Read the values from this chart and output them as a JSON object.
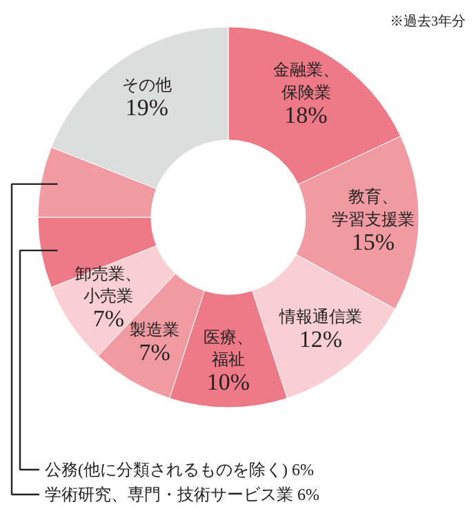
{
  "chart_data": {
    "type": "donut",
    "categories": [
      "金融業、保険業",
      "教育、学習支援業",
      "情報通信業",
      "医療、福祉",
      "製造業",
      "卸売業、小売業",
      "公務(他に分類されるものを除く)",
      "学術研究、専門・技術サービス業",
      "その他"
    ],
    "values": [
      18,
      15,
      12,
      10,
      7,
      7,
      6,
      6,
      19
    ],
    "value_labels": [
      "18%",
      "15%",
      "12%",
      "10%",
      "7%",
      "7%",
      "6%",
      "6%",
      "19%"
    ],
    "colors": [
      "#ee7a87",
      "#f19aa1",
      "#f9cfd3",
      "#ee7a87",
      "#f19aa1",
      "#f9cfd3",
      "#ee7a87",
      "#f19aa1",
      "#dcdddd"
    ],
    "annotations": [
      "※過去3年分"
    ]
  }
}
